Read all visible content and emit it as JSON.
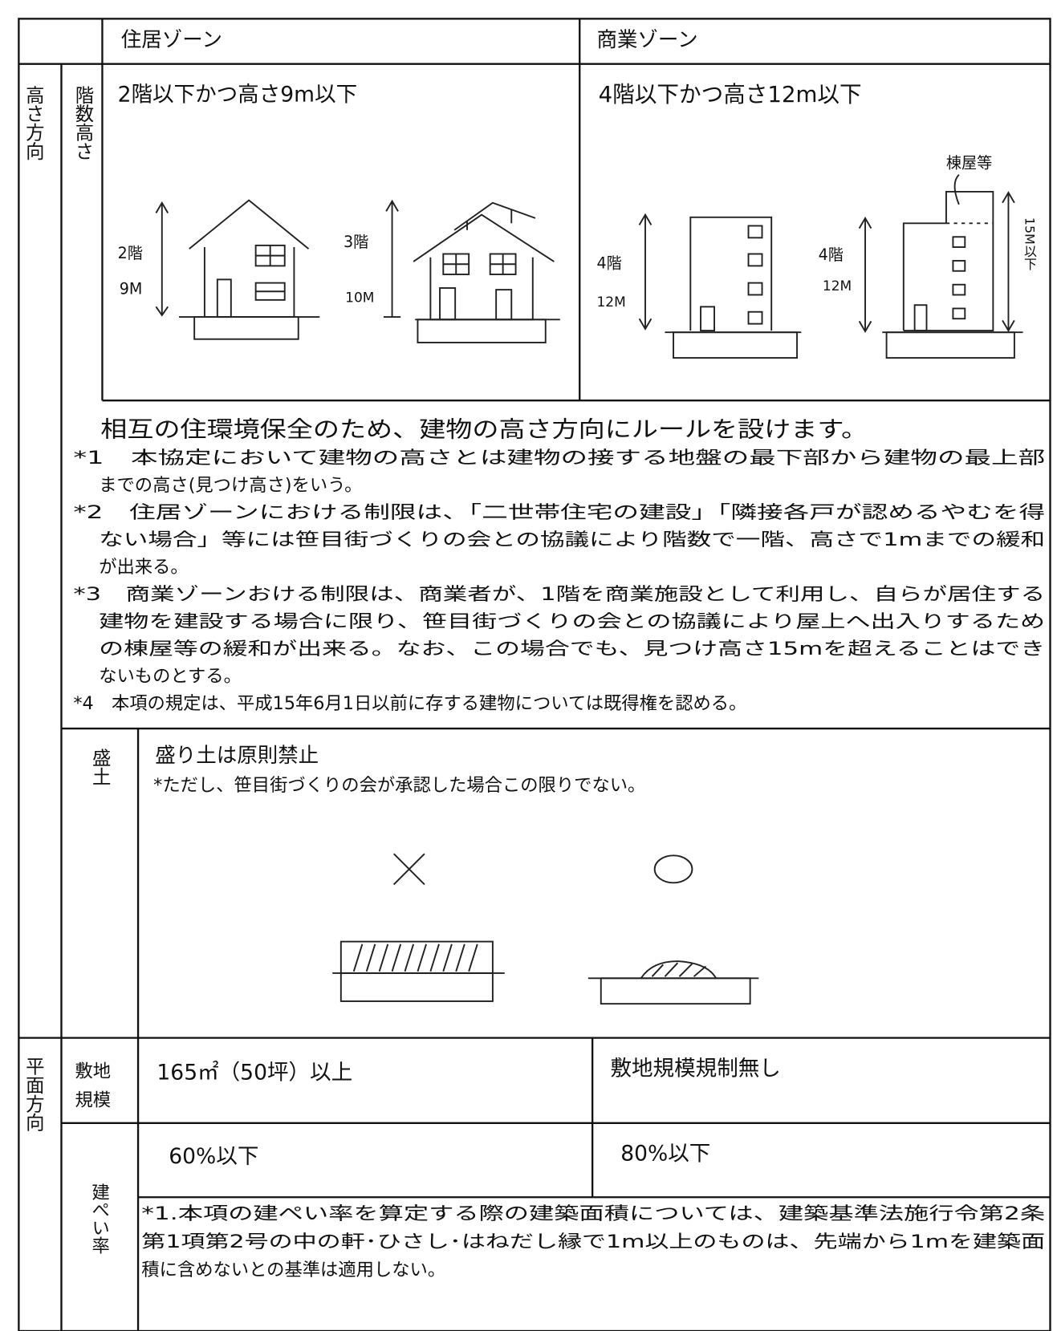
{
  "header": {
    "residential": "住居ゾーン",
    "commercial": "商業ゾーン"
  },
  "height_section": {
    "label": "高さ方向",
    "sub_label": "階数高さ",
    "residential": "2階以下かつ高さ9m以下",
    "commercial": "4階以下かつ高さ12m以下",
    "drawing_labels": {
      "house1_floors": "2階",
      "house1_height": "9M",
      "house2_floors": "3階",
      "house2_height": "10M",
      "building1_floors": "4階",
      "building1_height": "12M",
      "building2_floors": "4階",
      "building2_height": "12M",
      "penthouse": "棟屋等",
      "max_height": "15M以下"
    },
    "intro": "相互の住環境保全のため、建物の高さ方向にルールを設けます。",
    "notes": [
      [
        "*1　本協定において建物の高さとは建物の接する地盤の最下部から建物の最上部",
        "までの高さ(見つけ高さ)をいう。"
      ],
      [
        "*2　住居ゾーンにおける制限は、「二世帯住宅の建設」「隣接各戸が認めるやむを得",
        "ない場合」等には笹目街づくりの会との協議により階数で一階、高さで1mまでの緩和",
        "が出来る。"
      ],
      [
        "*3　商業ゾーンおける制限は、商業者が、1階を商業施設として利用し、自らが居住する",
        "建物を建設する場合に限り、笹目街づくりの会との協議により屋上へ出入りするため",
        "の棟屋等の緩和が出来る。なお、この場合でも、見つけ高さ15mを超えることはでき",
        "ないものとする。"
      ],
      [
        "*4　本項の規定は、平成15年6月1日以前に存する建物については既得権を認める。"
      ]
    ]
  },
  "fill_section": {
    "label": "盛土",
    "title": "盛り土は原則禁止",
    "note": "*ただし、笹目街づくりの会が承認した場合この限りでない。"
  },
  "plane_section": {
    "label": "平面方向",
    "site": {
      "label": [
        "敷地",
        "規模"
      ],
      "residential": "165㎡（50坪）以上",
      "commercial": "敷地規模規制無し"
    },
    "coverage": {
      "label": "建ぺい率",
      "residential": "60%以下",
      "commercial": "80%以下",
      "note": [
        "*1.本項の建ぺい率を算定する際の建築面積については、建築基準法施行令第2条",
        "第1項第2号の中の軒･ひさし･はねだし縁で1m以上のものは、先端から1mを建築面",
        "積に含めないとの基準は適用しない。"
      ]
    }
  }
}
